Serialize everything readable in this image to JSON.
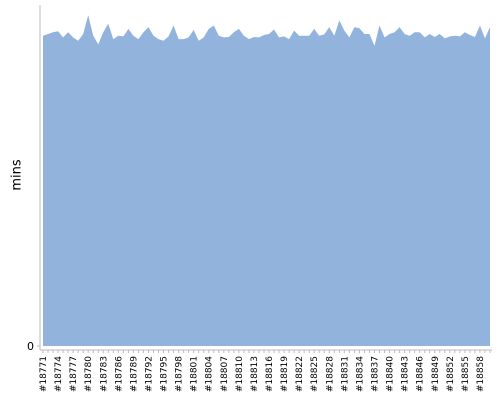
{
  "chart_data": {
    "type": "area",
    "y_label": "mins",
    "color": "#92b3dc",
    "categories": [
      "#18771",
      null,
      null,
      "#18774",
      null,
      null,
      "#18777",
      null,
      null,
      "#18780",
      null,
      null,
      "#18783",
      null,
      null,
      "#18786",
      null,
      null,
      "#18789",
      null,
      null,
      "#18792",
      null,
      null,
      "#18795",
      null,
      null,
      "#18798",
      null,
      null,
      "#18801",
      null,
      null,
      "#18804",
      null,
      null,
      "#18807",
      null,
      null,
      "#18810",
      null,
      null,
      "#18813",
      null,
      null,
      "#18816",
      null,
      null,
      "#18819",
      null,
      null,
      "#18822",
      null,
      null,
      "#18825",
      null,
      null,
      "#18828",
      null,
      null,
      "#18831",
      null,
      null,
      "#18834",
      null,
      null,
      "#18837",
      null,
      null,
      "#18840",
      null,
      null,
      "#18843",
      null,
      null,
      "#18846",
      null,
      null,
      "#18849",
      null,
      null,
      "#18852",
      null,
      null,
      "#18855",
      null,
      null,
      "#18858",
      null,
      null
    ],
    "values": [
      91,
      91.5,
      92,
      92.3,
      90.5,
      92,
      90.5,
      89.5,
      91.5,
      97,
      91,
      88.5,
      92,
      94.5,
      90,
      91,
      90.8,
      93,
      91,
      90,
      92,
      93.5,
      91,
      90,
      89.5,
      90.8,
      94,
      90,
      90,
      90.5,
      92.7,
      89.5,
      90.5,
      93,
      94,
      91,
      90.5,
      90.6,
      92,
      93,
      91,
      90,
      90.6,
      90.5,
      91.2,
      91.5,
      92.8,
      90.5,
      90.8,
      90,
      92.5,
      91,
      91,
      91,
      93,
      91,
      91.4,
      93.5,
      91,
      95.5,
      92.5,
      90.5,
      93.5,
      93.2,
      91.5,
      91.5,
      88,
      94,
      90.5,
      91.5,
      92,
      93.5,
      91.5,
      91,
      92,
      92,
      90.5,
      91.5,
      90.6,
      91.5,
      90.2,
      90.8,
      91,
      90.8,
      92,
      91.2,
      90.6,
      94,
      90.2,
      93.5
    ],
    "ylim": [
      0,
      100
    ],
    "yticks": [
      0
    ]
  }
}
